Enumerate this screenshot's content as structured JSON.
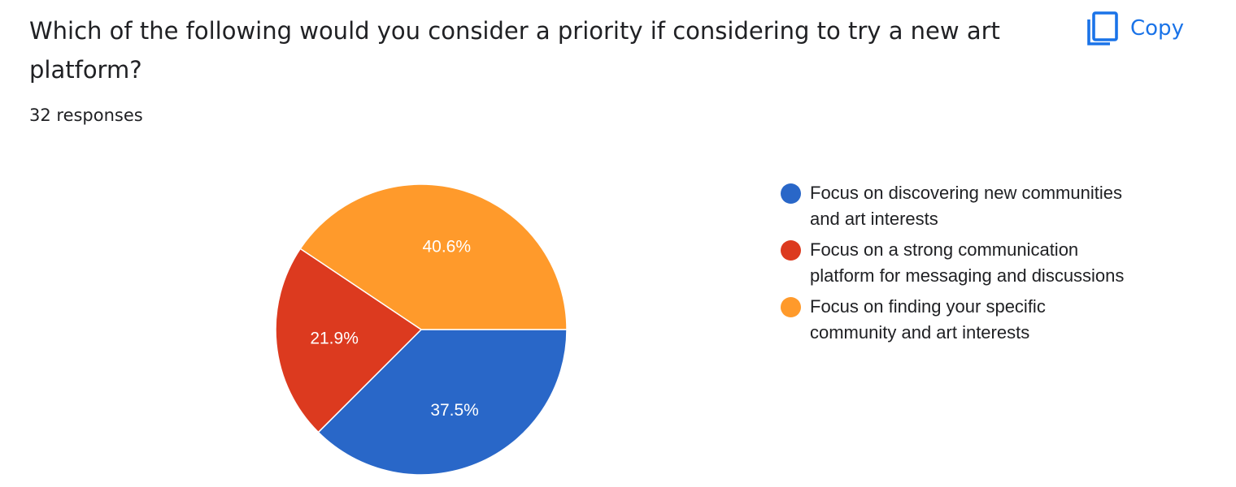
{
  "question": "Which of the following would you consider a priority if considering to try a new art platform?",
  "response_count": "32 responses",
  "copy_button": {
    "label": "Copy",
    "icon": "copy-icon"
  },
  "chart_data": {
    "type": "pie",
    "title": "",
    "legend_position": "right",
    "start_angle_deg": 90,
    "direction": "clockwise",
    "slices": [
      {
        "label": "Focus on discovering new communities and art interests",
        "legend_lines": [
          "Focus on discovering new communities",
          "and art interests"
        ],
        "value": 37.5,
        "display": "37.5%",
        "color": "#2967c8"
      },
      {
        "label": "Focus on a strong communication platform for messaging and discussions",
        "legend_lines": [
          "Focus on a strong communication",
          "platform for messaging and discussions"
        ],
        "value": 21.9,
        "display": "21.9%",
        "color": "#dc3a1f"
      },
      {
        "label": "Focus on finding your specific community and art interests",
        "legend_lines": [
          "Focus on finding your specific",
          "community and art interests"
        ],
        "value": 40.6,
        "display": "40.6%",
        "color": "#ff9a2b"
      }
    ]
  }
}
